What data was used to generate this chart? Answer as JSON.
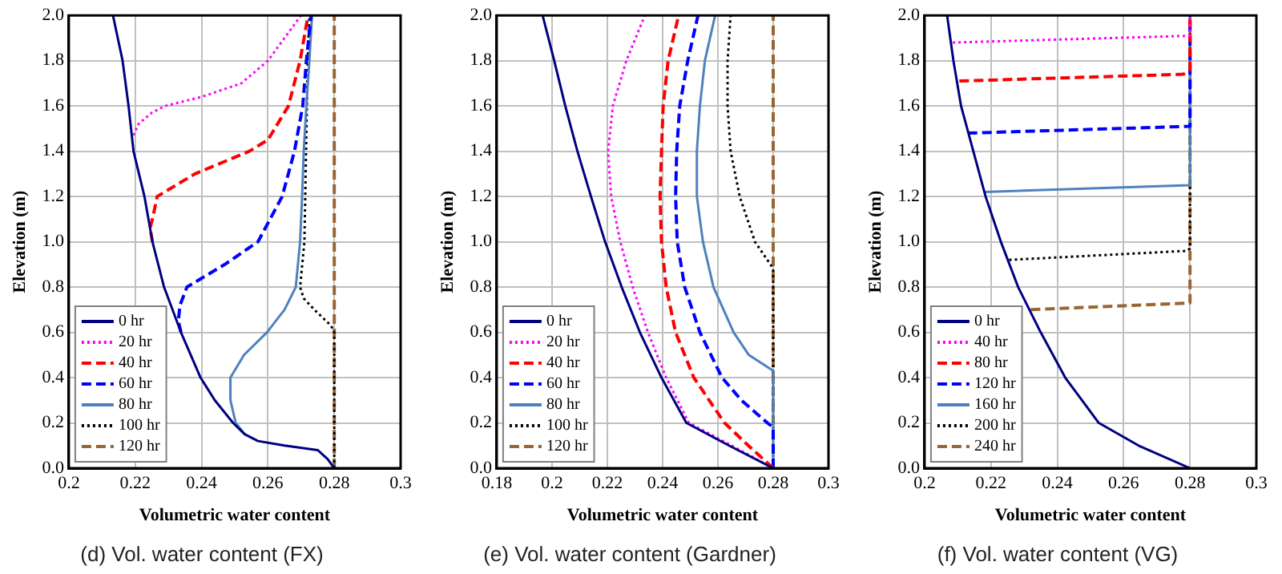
{
  "chart_data": [
    {
      "type": "line",
      "title": "(d) Vol. water content (FX)",
      "xlabel": "Volumetric water content",
      "ylabel": "Elevation (m)",
      "xlim": [
        0.2,
        0.3
      ],
      "xticks": [
        0.2,
        0.22,
        0.24,
        0.26,
        0.28,
        0.3
      ],
      "ylim": [
        0,
        2
      ],
      "yticks": [
        {
          "value": 0,
          "label": "0.0"
        },
        {
          "value": 0.2,
          "label": "0.2"
        },
        {
          "value": 0.4,
          "label": "0.4"
        },
        {
          "value": 0.6,
          "label": "0.6"
        },
        {
          "value": 0.8,
          "label": "0.8"
        },
        {
          "value": 1,
          "label": "1.0"
        },
        {
          "value": 1.2,
          "label": "1.2"
        },
        {
          "value": 1.4,
          "label": "1.4"
        },
        {
          "value": 1.6,
          "label": "1.6"
        },
        {
          "value": 1.8,
          "label": "1.8"
        },
        {
          "value": 2,
          "label": "2.0"
        }
      ],
      "grid": true,
      "legend": "bottom left",
      "series": [
        {
          "name": "0 hr",
          "color": "#000080",
          "line_style": "solid",
          "x": [
            0.28,
            0.278,
            0.275,
            0.265,
            0.257,
            0.253,
            0.2495,
            0.244,
            0.2397,
            0.2338,
            0.2287,
            0.2252,
            0.2228,
            0.2195,
            0.218,
            0.2162,
            0.2133
          ],
          "values": [
            0,
            0.04,
            0.08,
            0.1,
            0.12,
            0.15,
            0.2,
            0.3,
            0.4,
            0.6,
            0.8,
            1.0,
            1.2,
            1.4,
            1.6,
            1.8,
            2.0
          ]
        },
        {
          "name": "20 hr",
          "color": "#ff00ff",
          "line_style": "dotted",
          "x": [
            0.2195,
            0.221,
            0.225,
            0.229,
            0.24,
            0.252,
            0.26,
            0.265,
            0.27
          ],
          "values": [
            1.47,
            1.52,
            1.57,
            1.6,
            1.64,
            1.7,
            1.8,
            1.9,
            2.0
          ]
        },
        {
          "name": "40 hr",
          "color": "#ff0000",
          "line_style": "dashed",
          "x": [
            0.2252,
            0.2245,
            0.2255,
            0.2266,
            0.238,
            0.2544,
            0.26,
            0.2662,
            0.2697,
            0.2721
          ],
          "values": [
            1.0,
            1.06,
            1.12,
            1.2,
            1.3,
            1.4,
            1.45,
            1.6,
            1.8,
            2.0
          ]
        },
        {
          "name": "60 hr",
          "color": "#0000ff",
          "line_style": "dashed",
          "x": [
            0.2338,
            0.233,
            0.2335,
            0.2356,
            0.247,
            0.257,
            0.2643,
            0.268,
            0.2705,
            0.2716,
            0.273
          ],
          "values": [
            0.6,
            0.65,
            0.72,
            0.8,
            0.9,
            1.0,
            1.2,
            1.4,
            1.6,
            1.8,
            2.0
          ]
        },
        {
          "name": "80 hr",
          "color": "#4f81bd",
          "line_style": "solid",
          "x": [
            0.253,
            0.2503,
            0.2487,
            0.2487,
            0.2528,
            0.2597,
            0.265,
            0.2684,
            0.2697,
            0.2703,
            0.2708,
            0.2716,
            0.2725,
            0.2733
          ],
          "values": [
            0.15,
            0.2,
            0.3,
            0.4,
            0.5,
            0.6,
            0.7,
            0.8,
            1.0,
            1.2,
            1.4,
            1.6,
            1.8,
            2.0
          ]
        },
        {
          "name": "100 hr",
          "color": "#000000",
          "line_style": "dotted",
          "x": [
            0.28,
            0.28,
            0.279,
            0.274,
            0.2708,
            0.2697,
            0.271,
            0.2715,
            0.272,
            0.2725
          ],
          "values": [
            0,
            0.6,
            0.63,
            0.7,
            0.75,
            0.8,
            1.0,
            1.4,
            1.8,
            2.0
          ]
        },
        {
          "name": "120 hr",
          "color": "#996633",
          "line_style": "dashed",
          "x": [
            0.28,
            0.28
          ],
          "values": [
            0,
            2.0
          ]
        }
      ]
    },
    {
      "type": "line",
      "title": "(e) Vol. water content (Gardner)",
      "xlabel": "Volumetric water content",
      "ylabel": "Elevation (m)",
      "xlim": [
        0.18,
        0.3
      ],
      "xticks": [
        0.18,
        0.2,
        0.22,
        0.24,
        0.26,
        0.28,
        0.3
      ],
      "ylim": [
        0,
        2
      ],
      "yticks": [
        {
          "value": 0,
          "label": "0.0"
        },
        {
          "value": 0.2,
          "label": "0.2"
        },
        {
          "value": 0.4,
          "label": "0.4"
        },
        {
          "value": 0.6,
          "label": "0.6"
        },
        {
          "value": 0.8,
          "label": "0.8"
        },
        {
          "value": 1,
          "label": "1.0"
        },
        {
          "value": 1.2,
          "label": "1.2"
        },
        {
          "value": 1.4,
          "label": "1.4"
        },
        {
          "value": 1.6,
          "label": "1.6"
        },
        {
          "value": 1.8,
          "label": "1.8"
        },
        {
          "value": 2,
          "label": "2.0"
        }
      ],
      "grid": true,
      "legend": "bottom left",
      "series": [
        {
          "name": "0 hr",
          "color": "#000080",
          "line_style": "solid",
          "x": [
            0.28,
            0.264,
            0.2486,
            0.2396,
            0.2318,
            0.2252,
            0.2192,
            0.2141,
            0.2092,
            0.2048,
            0.2008,
            0.1966
          ],
          "values": [
            0,
            0.1,
            0.2,
            0.4,
            0.6,
            0.8,
            1.0,
            1.2,
            1.4,
            1.6,
            1.8,
            2.0
          ]
        },
        {
          "name": "20 hr",
          "color": "#ff00ff",
          "line_style": "dotted",
          "x": [
            0.28,
            0.265,
            0.2495,
            0.2413,
            0.2347,
            0.2292,
            0.2247,
            0.2214,
            0.2203,
            0.222,
            0.2269,
            0.2336
          ],
          "values": [
            0,
            0.1,
            0.2,
            0.4,
            0.6,
            0.8,
            1.0,
            1.2,
            1.4,
            1.6,
            1.8,
            2.0
          ]
        },
        {
          "name": "40 hr",
          "color": "#ff0000",
          "line_style": "dashed",
          "x": [
            0.28,
            0.271,
            0.2624,
            0.2513,
            0.2447,
            0.2413,
            0.2396,
            0.2391,
            0.2396,
            0.2402,
            0.242,
            0.2458
          ],
          "values": [
            0,
            0.1,
            0.2,
            0.4,
            0.6,
            0.8,
            1.0,
            1.2,
            1.4,
            1.6,
            1.8,
            2.0
          ]
        },
        {
          "name": "60 hr",
          "color": "#0000ff",
          "line_style": "dashed",
          "x": [
            0.28,
            0.28,
            0.2779,
            0.2685,
            0.2615,
            0.2535,
            0.248,
            0.2453,
            0.2447,
            0.2451,
            0.2462,
            0.2491,
            0.2528
          ],
          "values": [
            0,
            0.18,
            0.2,
            0.3,
            0.4,
            0.6,
            0.8,
            1.0,
            1.2,
            1.4,
            1.6,
            1.8,
            2.0
          ]
        },
        {
          "name": "80 hr",
          "color": "#4f81bd",
          "line_style": "solid",
          "x": [
            0.28,
            0.28,
            0.2712,
            0.2657,
            0.2584,
            0.2546,
            0.2524,
            0.2524,
            0.2535,
            0.2553,
            0.259
          ],
          "values": [
            0,
            0.43,
            0.5,
            0.6,
            0.8,
            1.0,
            1.2,
            1.4,
            1.6,
            1.8,
            2.0
          ]
        },
        {
          "name": "100 hr",
          "color": "#000000",
          "line_style": "dotted",
          "x": [
            0.28,
            0.28,
            0.279,
            0.2734,
            0.2679,
            0.2646,
            0.2635,
            0.2635,
            0.2646
          ],
          "values": [
            0,
            0.88,
            0.9,
            1.0,
            1.2,
            1.4,
            1.6,
            1.8,
            2.0
          ]
        },
        {
          "name": "120 hr",
          "color": "#996633",
          "line_style": "dashed",
          "x": [
            0.28,
            0.28
          ],
          "values": [
            0,
            2.0
          ]
        }
      ]
    },
    {
      "type": "line",
      "title": "(f) Vol. water content (VG)",
      "xlabel": "Volumetric water content",
      "ylabel": "Elevation (m)",
      "xlim": [
        0.2,
        0.3
      ],
      "xticks": [
        0.2,
        0.22,
        0.24,
        0.26,
        0.28,
        0.3
      ],
      "ylim": [
        0,
        2
      ],
      "yticks": [
        {
          "value": 0,
          "label": "0.0"
        },
        {
          "value": 0.2,
          "label": "0.2"
        },
        {
          "value": 0.4,
          "label": "0.4"
        },
        {
          "value": 0.6,
          "label": "0.6"
        },
        {
          "value": 0.8,
          "label": "0.8"
        },
        {
          "value": 1,
          "label": "1.0"
        },
        {
          "value": 1.2,
          "label": "1.2"
        },
        {
          "value": 1.4,
          "label": "1.4"
        },
        {
          "value": 1.6,
          "label": "1.6"
        },
        {
          "value": 1.8,
          "label": "1.8"
        },
        {
          "value": 2,
          "label": "2.0"
        }
      ],
      "grid": true,
      "legend": "bottom left",
      "series": [
        {
          "name": "0 hr",
          "color": "#000080",
          "line_style": "solid",
          "x": [
            0.28,
            0.2645,
            0.2525,
            0.2424,
            0.235,
            0.2282,
            0.223,
            0.2184,
            0.2147,
            0.211,
            0.2087,
            0.2068
          ],
          "values": [
            0,
            0.1,
            0.2,
            0.4,
            0.6,
            0.8,
            1.0,
            1.2,
            1.4,
            1.6,
            1.8,
            2.0
          ]
        },
        {
          "name": "40 hr",
          "color": "#ff00ff",
          "line_style": "dotted",
          "x": [
            0.2085,
            0.28,
            0.28
          ],
          "values": [
            1.88,
            1.91,
            2.0
          ]
        },
        {
          "name": "80 hr",
          "color": "#ff0000",
          "line_style": "dashed",
          "x": [
            0.2105,
            0.278,
            0.28,
            0.28
          ],
          "values": [
            1.71,
            1.74,
            1.76,
            2.0
          ]
        },
        {
          "name": "120 hr",
          "color": "#0000ff",
          "line_style": "dashed",
          "x": [
            0.213,
            0.28,
            0.28
          ],
          "values": [
            1.48,
            1.51,
            2.0
          ]
        },
        {
          "name": "160 hr",
          "color": "#4f81bd",
          "line_style": "solid",
          "x": [
            0.218,
            0.28,
            0.28
          ],
          "values": [
            1.22,
            1.25,
            2.0
          ]
        },
        {
          "name": "200 hr",
          "color": "#000000",
          "line_style": "dotted",
          "x": [
            0.2255,
            0.279,
            0.28,
            0.28
          ],
          "values": [
            0.92,
            0.96,
            0.97,
            2.0
          ]
        },
        {
          "name": "240 hr",
          "color": "#996633",
          "line_style": "dashed",
          "x": [
            0.232,
            0.28,
            0.28
          ],
          "values": [
            0.7,
            0.73,
            2.0
          ]
        }
      ]
    }
  ]
}
